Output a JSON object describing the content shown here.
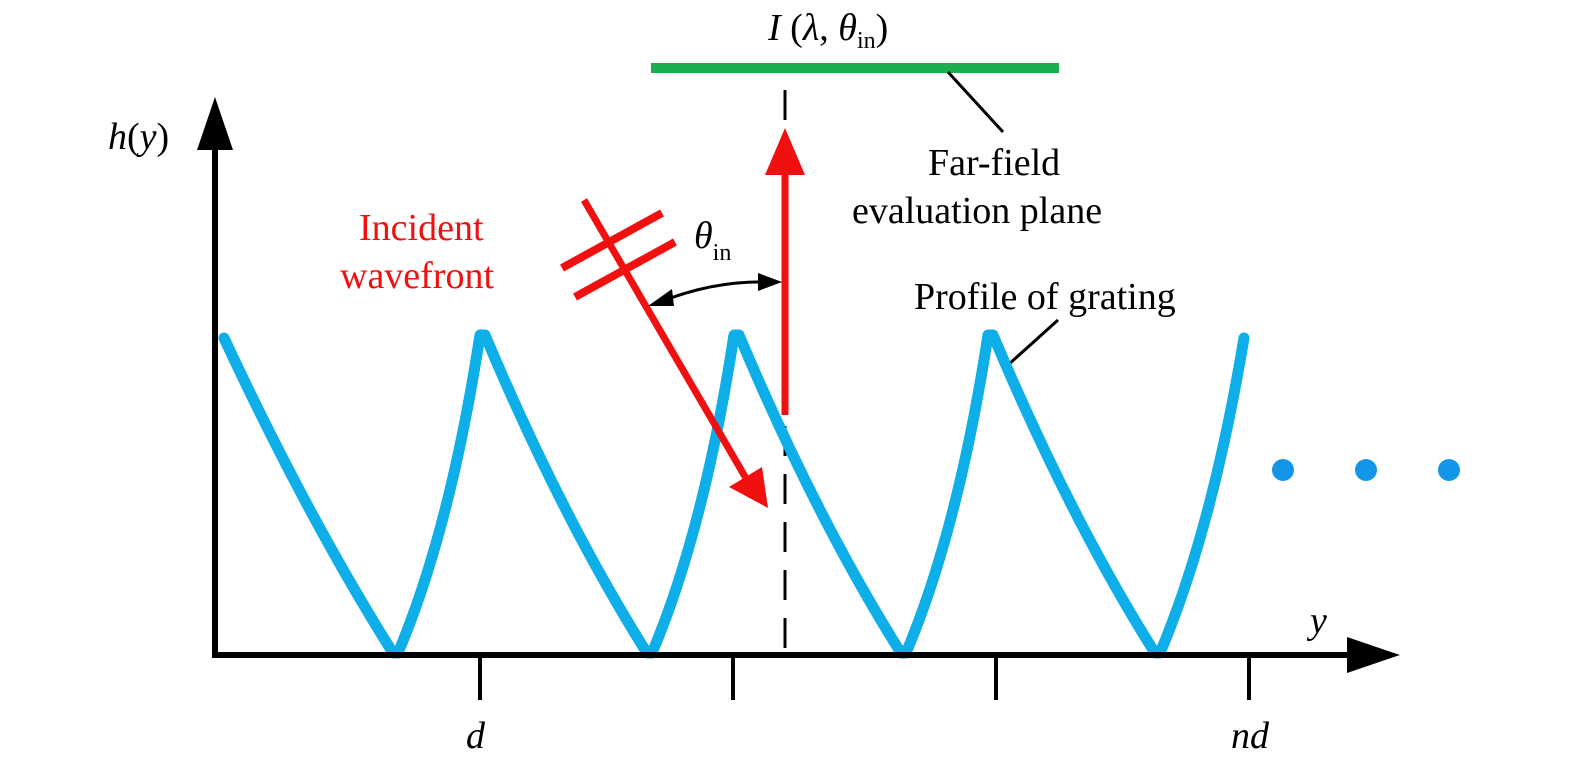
{
  "colors": {
    "axis": "#000000",
    "grating": "#0EAEE8",
    "incident": "#F01010",
    "plane": "#1CAD4C",
    "dots": "#1296E8"
  },
  "labels": {
    "h_axis": {
      "main": "h",
      "open": "(",
      "var": "y",
      "close": ")"
    },
    "y_axis": "y",
    "tick_d": "d",
    "tick_nd": "nd",
    "intensity": {
      "I": "I",
      "open": " (",
      "lambda": "λ",
      "comma": ", ",
      "theta": "θ",
      "sub": "in",
      "close": ")"
    },
    "far_field_line1": "Far-field",
    "far_field_line2": "evaluation plane",
    "incident_line1": "Incident",
    "incident_line2": "wavefront",
    "theta_in": {
      "theta": "θ",
      "sub": "in"
    },
    "profile": "Profile of grating"
  },
  "icons": {
    "continuation": "ellipsis-dots-icon"
  }
}
